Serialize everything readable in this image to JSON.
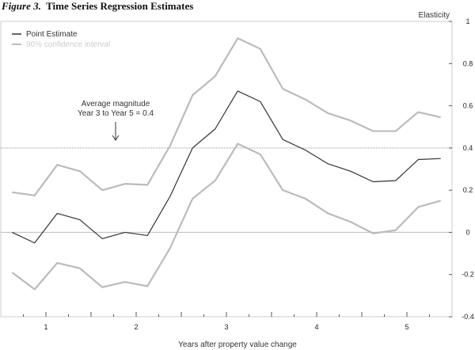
{
  "chart_data": {
    "type": "line",
    "figure_label": "Figure 3.",
    "title": "Time Series Regression Estimates",
    "xlabel": "Years after property value change",
    "ylabel": "Elasticity",
    "x": [
      0.625,
      0.875,
      1.125,
      1.375,
      1.625,
      1.875,
      2.125,
      2.375,
      2.625,
      2.875,
      3.125,
      3.375,
      3.625,
      3.875,
      4.125,
      4.375,
      4.625,
      4.875,
      5.125,
      5.375
    ],
    "xlim": [
      0.5,
      5.5
    ],
    "x_ticks": [
      "1",
      "2",
      "3",
      "4",
      "5"
    ],
    "x_tick_values": [
      1,
      2,
      3,
      4,
      5
    ],
    "ylim": [
      -0.4,
      1
    ],
    "y_ticks": [
      "-0.4",
      "-0.2",
      "0",
      "0.2",
      "0.4",
      "0.6",
      "0.8",
      "1"
    ],
    "y_tick_values": [
      -0.4,
      -0.2,
      0,
      0.2,
      0.4,
      0.6,
      0.8,
      1
    ],
    "reference_lines": [
      {
        "y": 0,
        "style": "solid"
      },
      {
        "y": 0.4,
        "style": "dotted"
      }
    ],
    "annotation": {
      "line1": "Average magnitude",
      "line2": "Year 3 to Year 5 = 0.4",
      "x": 1.75,
      "y": 0.4
    },
    "legend_position": "top-left",
    "series": [
      {
        "name": "Point Estimate",
        "color": "#333333",
        "values": [
          0,
          -0.05,
          0.09,
          0.06,
          -0.03,
          0,
          -0.015,
          0.17,
          0.4,
          0.49,
          0.67,
          0.62,
          0.44,
          0.39,
          0.325,
          0.29,
          0.24,
          0.245,
          0.345,
          0.35
        ]
      },
      {
        "name": "90% confidence interval",
        "color": "#bbbbbb",
        "values": [
          0.19,
          0.175,
          0.32,
          0.29,
          0.2,
          0.23,
          0.225,
          0.41,
          0.65,
          0.74,
          0.92,
          0.87,
          0.68,
          0.63,
          0.565,
          0.53,
          0.48,
          0.48,
          0.57,
          0.545
        ]
      },
      {
        "name": "90% confidence interval (lower)",
        "color": "#bbbbbb",
        "values": [
          -0.19,
          -0.27,
          -0.145,
          -0.17,
          -0.26,
          -0.235,
          -0.255,
          -0.075,
          0.16,
          0.245,
          0.42,
          0.37,
          0.2,
          0.16,
          0.09,
          0.05,
          -0.005,
          0.01,
          0.12,
          0.15
        ]
      }
    ]
  }
}
